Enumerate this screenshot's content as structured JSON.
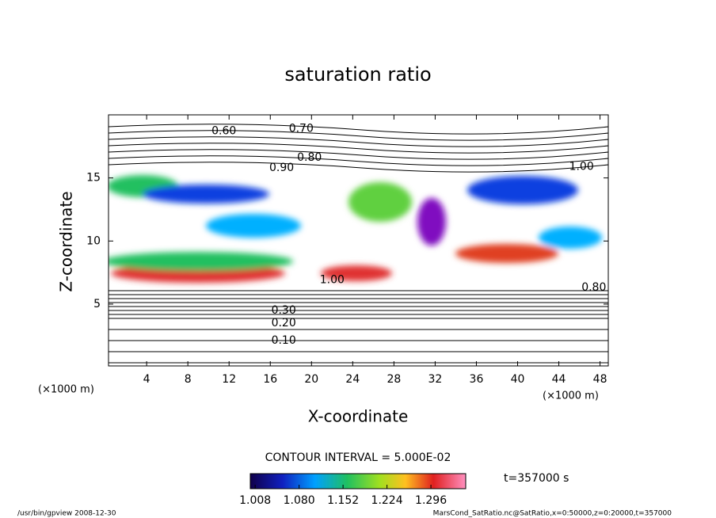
{
  "chart_data": {
    "type": "contour",
    "title": "saturation ratio",
    "xlabel": "X-coordinate",
    "ylabel": "Z-coordinate",
    "x_unit": "(×1000 m)",
    "y_unit": "(×1000 m)",
    "xlim": [
      0.3,
      48.8
    ],
    "ylim": [
      0.1,
      20
    ],
    "xticks": [
      4,
      8,
      12,
      16,
      20,
      24,
      28,
      32,
      36,
      40,
      44,
      48
    ],
    "yticks": [
      5,
      10,
      15
    ],
    "contour_interval": "CONTOUR INTERVAL = 5.000E-02",
    "contour_labels": [
      {
        "value": 0.6,
        "label": "0.60",
        "x": 11.5,
        "y": 18.7
      },
      {
        "value": 0.7,
        "label": "0.70",
        "x": 19,
        "y": 18.9
      },
      {
        "value": 0.8,
        "label": "0.80",
        "x": 19.8,
        "y": 16.6
      },
      {
        "value": 0.9,
        "label": "0.90",
        "x": 17.1,
        "y": 15.8
      },
      {
        "value": 1,
        "label": "1.00",
        "x": 22,
        "y": 6.9
      },
      {
        "value": 1,
        "label": "1.00",
        "x": 46.2,
        "y": 15.9
      },
      {
        "value": 0.3,
        "label": "0.30",
        "x": 17.3,
        "y": 4.5
      },
      {
        "value": 0.2,
        "label": "0.20",
        "x": 17.3,
        "y": 3.5
      },
      {
        "value": 0.1,
        "label": "0.10",
        "x": 17.3,
        "y": 2.1
      },
      {
        "value": 0.8,
        "label": "0.80",
        "x": 47.4,
        "y": 6.3
      }
    ],
    "clim": [
      1.0,
      1.353
    ],
    "cticks": [
      {
        "value": 1.008,
        "label": "1.008"
      },
      {
        "value": 1.08,
        "label": "1.080"
      },
      {
        "value": 1.152,
        "label": "1.152"
      },
      {
        "value": 1.224,
        "label": "1.224"
      },
      {
        "value": 1.296,
        "label": "1.296"
      }
    ],
    "time_label": "t=357000 s",
    "footer_left": "/usr/bin/gpview  2008-12-30",
    "footer_right": "MarsCond_SatRatio.nc@SatRatio,x=0:50000,z=0:20000,t=357000"
  }
}
